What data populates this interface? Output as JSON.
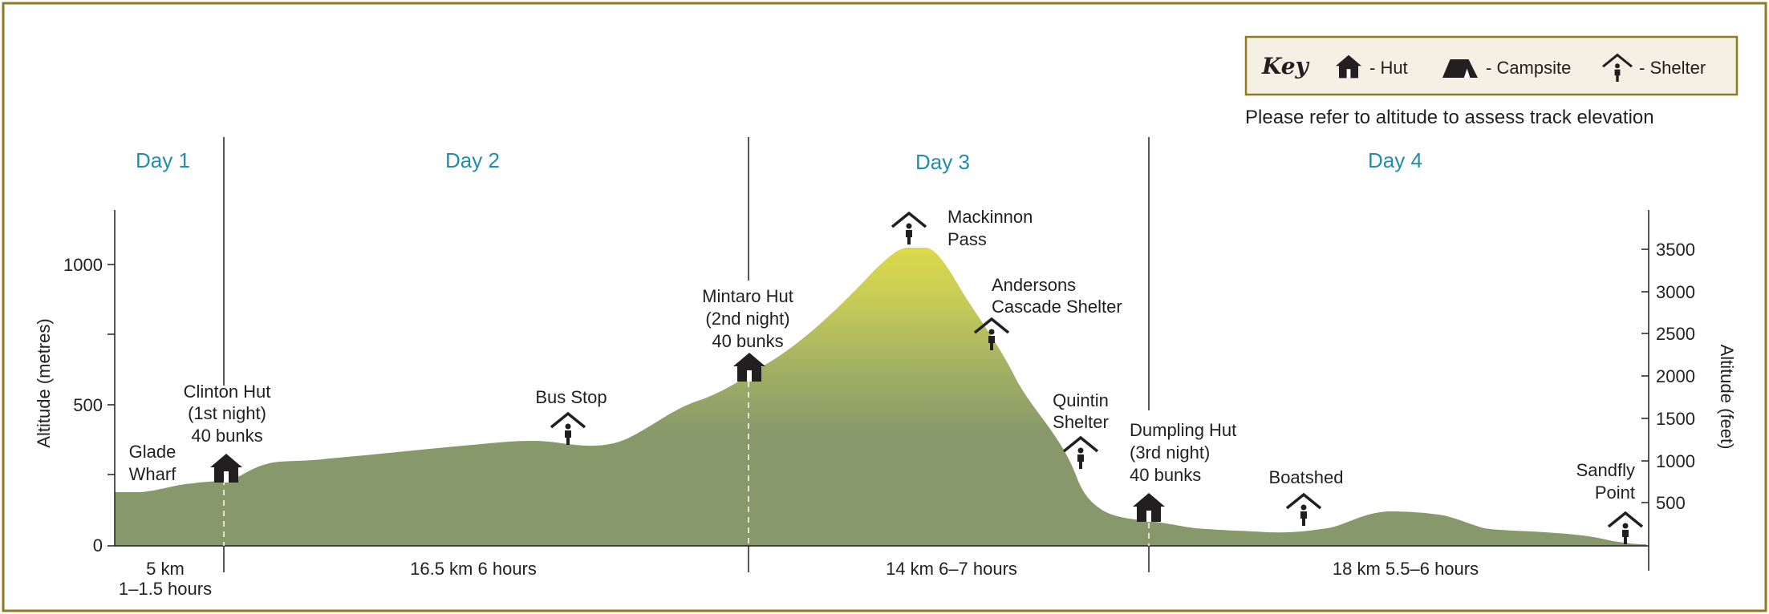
{
  "key": {
    "title": "Key",
    "hut_label": "- Hut",
    "campsite_label": "- Campsite",
    "shelter_label": "- Shelter"
  },
  "note": "Please refer to altitude to assess track elevation",
  "days": [
    "Day 1",
    "Day 2",
    "Day 3",
    "Day 4"
  ],
  "axes": {
    "left_title": "Altitude (metres)",
    "left_ticks": [
      "0",
      "500",
      "1000"
    ],
    "right_title": "Altitude (feet)",
    "right_ticks": [
      "500",
      "1000",
      "1500",
      "2000",
      "2500",
      "3000",
      "3500"
    ]
  },
  "segments": [
    {
      "distance": "5 km",
      "time": "1–1.5 hours"
    },
    {
      "distance": "16.5 km  6 hours"
    },
    {
      "distance": "14 km  6–7 hours"
    },
    {
      "distance": "18 km  5.5–6 hours"
    }
  ],
  "places": {
    "glade": [
      "Glade",
      "Wharf"
    ],
    "clinton": [
      "Clinton Hut",
      "(1st night)",
      "40 bunks"
    ],
    "busstop": [
      "Bus Stop"
    ],
    "mintaro": [
      "Mintaro Hut",
      "(2nd night)",
      "40 bunks"
    ],
    "mackinnon": [
      "Mackinnon",
      "Pass"
    ],
    "andersons": [
      "Andersons",
      "Cascade Shelter"
    ],
    "quintin": [
      "Quintin",
      "Shelter"
    ],
    "dumpling": [
      "Dumpling Hut",
      "(3rd night)",
      "40 bunks"
    ],
    "boatshed": [
      "Boatshed"
    ],
    "sandfly": [
      "Sandfly",
      "Point"
    ]
  },
  "colors": {
    "border": "#8f7a1f",
    "terrain_low": "#87996a",
    "terrain_peak": "#d9d64a",
    "day_text": "#1e8db2",
    "key_bg": "#f4f0e4"
  }
}
